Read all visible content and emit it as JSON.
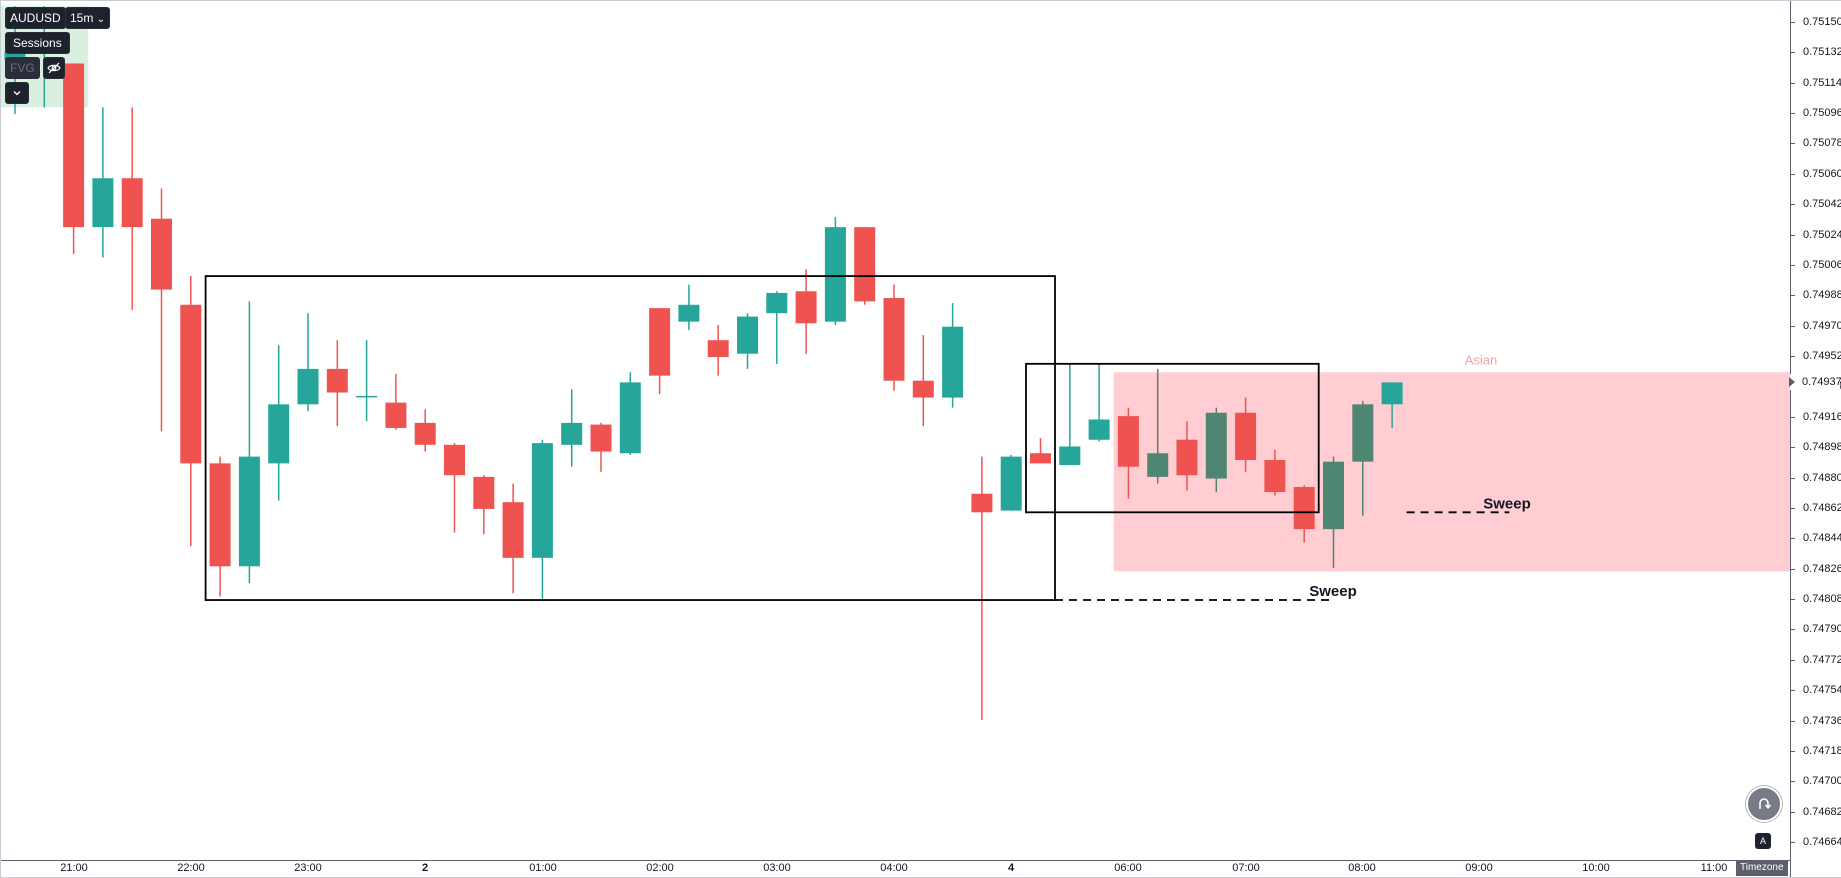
{
  "toolbar": {
    "symbol": "AUDUSD",
    "interval": "15m",
    "interval_caret": "⌄",
    "sessions_label": "Sessions",
    "fvg_label": "FVG",
    "eye_icon": "eye-off-icon",
    "expand_icon": "chevron-down-icon"
  },
  "price_axis": {
    "labels": [
      "0.75150",
      "0.75132",
      "0.75114",
      "0.75096",
      "0.75078",
      "0.75060",
      "0.75042",
      "0.75024",
      "0.75006",
      "0.74988",
      "0.74970",
      "0.74952",
      "0.74934",
      "0.74916",
      "0.74898",
      "0.74880",
      "0.74862",
      "0.74844",
      "0.74826",
      "0.74808",
      "0.74790",
      "0.74772",
      "0.74754",
      "0.74736",
      "0.74718",
      "0.74700",
      "0.74682",
      "0.74664"
    ],
    "current_price": "0.74937"
  },
  "time_axis": {
    "labels": [
      {
        "text": "21:00",
        "bold": false
      },
      {
        "text": "22:00",
        "bold": false
      },
      {
        "text": "23:00",
        "bold": false
      },
      {
        "text": "2",
        "bold": true
      },
      {
        "text": "01:00",
        "bold": false
      },
      {
        "text": "02:00",
        "bold": false
      },
      {
        "text": "03:00",
        "bold": false
      },
      {
        "text": "04:00",
        "bold": false
      },
      {
        "text": "4",
        "bold": true
      },
      {
        "text": "06:00",
        "bold": false
      },
      {
        "text": "07:00",
        "bold": false
      },
      {
        "text": "08:00",
        "bold": false
      },
      {
        "text": "09:00",
        "bold": false
      },
      {
        "text": "10:00",
        "bold": false
      },
      {
        "text": "11:00",
        "bold": false
      }
    ],
    "timezone_label": "Timezone"
  },
  "annotations": {
    "asian_label": "Asian",
    "sweep_upper": "Sweep",
    "sweep_lower": "Sweep"
  },
  "buttons": {
    "replay_icon": "replay-icon",
    "auto_scale_icon": "auto-scale-icon",
    "auto_label": "A"
  },
  "colors": {
    "up": "#26a69a",
    "down": "#ef5350",
    "up_in_session": "#4f8573",
    "session_fill": "#ffcdd2",
    "session_text": "#f7a1a1",
    "green_session_fill": "#d9f0e0"
  },
  "chart_data": {
    "type": "candlestick",
    "symbol": "AUDUSD",
    "interval": "15m",
    "ylim": [
      0.74655,
      0.75158
    ],
    "candles": [
      {
        "o": 0.75128,
        "h": 0.7516,
        "l": 0.75096,
        "c": 0.75133
      },
      {
        "o": 0.75133,
        "h": 0.7516,
        "l": 0.751,
        "c": 0.75133
      },
      {
        "o": 0.75126,
        "h": 0.75126,
        "l": 0.75013,
        "c": 0.75029
      },
      {
        "o": 0.75029,
        "h": 0.751,
        "l": 0.75011,
        "c": 0.75058
      },
      {
        "o": 0.75058,
        "h": 0.751,
        "l": 0.7498,
        "c": 0.75029
      },
      {
        "o": 0.75034,
        "h": 0.75052,
        "l": 0.74908,
        "c": 0.74992
      },
      {
        "o": 0.74983,
        "h": 0.75,
        "l": 0.7484,
        "c": 0.74889
      },
      {
        "o": 0.74889,
        "h": 0.74893,
        "l": 0.7481,
        "c": 0.74828
      },
      {
        "o": 0.74828,
        "h": 0.74985,
        "l": 0.74818,
        "c": 0.74893
      },
      {
        "o": 0.74889,
        "h": 0.74959,
        "l": 0.74867,
        "c": 0.74924
      },
      {
        "o": 0.74924,
        "h": 0.74978,
        "l": 0.7492,
        "c": 0.74945
      },
      {
        "o": 0.74945,
        "h": 0.74962,
        "l": 0.74911,
        "c": 0.74931
      },
      {
        "o": 0.74929,
        "h": 0.74962,
        "l": 0.74914,
        "c": 0.74929
      },
      {
        "o": 0.74925,
        "h": 0.74942,
        "l": 0.74909,
        "c": 0.7491
      },
      {
        "o": 0.74913,
        "h": 0.74921,
        "l": 0.74896,
        "c": 0.749
      },
      {
        "o": 0.749,
        "h": 0.74901,
        "l": 0.74848,
        "c": 0.74882
      },
      {
        "o": 0.74881,
        "h": 0.74882,
        "l": 0.74847,
        "c": 0.74862
      },
      {
        "o": 0.74866,
        "h": 0.74877,
        "l": 0.74812,
        "c": 0.74833
      },
      {
        "o": 0.74833,
        "h": 0.74903,
        "l": 0.74808,
        "c": 0.74901
      },
      {
        "o": 0.749,
        "h": 0.74933,
        "l": 0.74887,
        "c": 0.74913
      },
      {
        "o": 0.74912,
        "h": 0.74913,
        "l": 0.74884,
        "c": 0.74896
      },
      {
        "o": 0.74895,
        "h": 0.74943,
        "l": 0.74894,
        "c": 0.74937
      },
      {
        "o": 0.74981,
        "h": 0.74981,
        "l": 0.7493,
        "c": 0.74941
      },
      {
        "o": 0.74973,
        "h": 0.74995,
        "l": 0.74968,
        "c": 0.74983
      },
      {
        "o": 0.74962,
        "h": 0.74971,
        "l": 0.74941,
        "c": 0.74952
      },
      {
        "o": 0.74954,
        "h": 0.74978,
        "l": 0.74945,
        "c": 0.74976
      },
      {
        "o": 0.74978,
        "h": 0.74991,
        "l": 0.74948,
        "c": 0.7499
      },
      {
        "o": 0.74991,
        "h": 0.75004,
        "l": 0.74954,
        "c": 0.74972
      },
      {
        "o": 0.74973,
        "h": 0.75035,
        "l": 0.74971,
        "c": 0.75029
      },
      {
        "o": 0.75029,
        "h": 0.75029,
        "l": 0.74983,
        "c": 0.74985
      },
      {
        "o": 0.74987,
        "h": 0.74995,
        "l": 0.74932,
        "c": 0.74938
      },
      {
        "o": 0.74938,
        "h": 0.74965,
        "l": 0.74911,
        "c": 0.74928
      },
      {
        "o": 0.74928,
        "h": 0.74984,
        "l": 0.74922,
        "c": 0.7497
      },
      {
        "o": 0.74871,
        "h": 0.74893,
        "l": 0.74737,
        "c": 0.7486
      },
      {
        "o": 0.74861,
        "h": 0.74894,
        "l": 0.74861,
        "c": 0.74893
      },
      {
        "o": 0.74895,
        "h": 0.74904,
        "l": 0.74889,
        "c": 0.74889
      },
      {
        "o": 0.74888,
        "h": 0.74948,
        "l": 0.74888,
        "c": 0.74899
      },
      {
        "o": 0.74903,
        "h": 0.74948,
        "l": 0.74902,
        "c": 0.74915
      },
      {
        "o": 0.74917,
        "h": 0.74922,
        "l": 0.74868,
        "c": 0.74887
      },
      {
        "o": 0.74881,
        "h": 0.74945,
        "l": 0.74877,
        "c": 0.74895
      },
      {
        "o": 0.74903,
        "h": 0.74914,
        "l": 0.74873,
        "c": 0.74882
      },
      {
        "o": 0.7488,
        "h": 0.74922,
        "l": 0.74872,
        "c": 0.74919
      },
      {
        "o": 0.74919,
        "h": 0.74928,
        "l": 0.74884,
        "c": 0.74891
      },
      {
        "o": 0.74891,
        "h": 0.74897,
        "l": 0.7487,
        "c": 0.74872
      },
      {
        "o": 0.74875,
        "h": 0.74876,
        "l": 0.74842,
        "c": 0.7485
      },
      {
        "o": 0.7485,
        "h": 0.74893,
        "l": 0.74827,
        "c": 0.7489
      },
      {
        "o": 0.7489,
        "h": 0.74926,
        "l": 0.74858,
        "c": 0.74924
      },
      {
        "o": 0.74924,
        "h": 0.74937,
        "l": 0.7491,
        "c": 0.74937
      }
    ],
    "rectangles": [
      {
        "from_candle": 7,
        "to_candle": 35,
        "top": 0.75,
        "bottom": 0.74808
      },
      {
        "from_candle": 35,
        "to_candle": 44,
        "top": 0.74948,
        "bottom": 0.7486
      }
    ],
    "sessions": [
      {
        "name": "",
        "from_candle": 0,
        "to_candle": 2,
        "top": 0.7516,
        "bottom": 0.751,
        "color": "green"
      },
      {
        "name": "Asian",
        "from_candle": 38,
        "to_candle": 60,
        "top": 0.74943,
        "bottom": 0.74825,
        "color": "red"
      }
    ],
    "sweeps": [
      {
        "label": "Sweep",
        "price": 0.74808,
        "from_candle": 35,
        "to_candle": 45
      },
      {
        "label": "Sweep",
        "price": 0.7486,
        "from_candle": 47,
        "to_candle": 51
      }
    ]
  }
}
